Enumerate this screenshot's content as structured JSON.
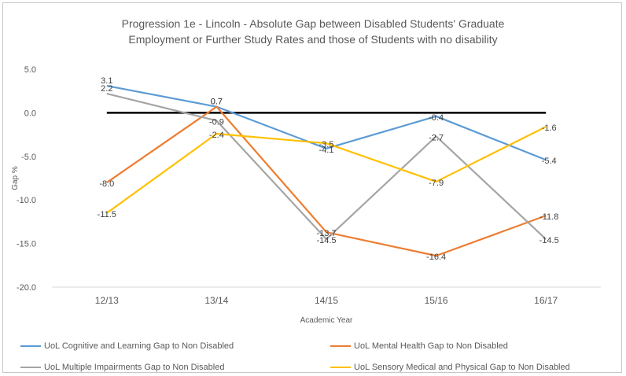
{
  "chart_data": {
    "type": "line",
    "title_lines": [
      "Progression 1e - Lincoln - Absolute Gap between Disabled Students' Graduate",
      "Employment or Further Study Rates and those of Students with no disability"
    ],
    "xlabel": "Academic Year",
    "ylabel": "Gap %",
    "categories": [
      "12/13",
      "13/14",
      "14/15",
      "15/16",
      "16/17"
    ],
    "ylim": [
      -20.0,
      5.0
    ],
    "yticks": [
      "5.0",
      "0.0",
      "-5.0",
      "-10.0",
      "-15.0",
      "-20.0"
    ],
    "ytick_values": [
      5,
      0,
      -5,
      -10,
      -15,
      -20
    ],
    "grid": false,
    "legend_position": "bottom",
    "series": [
      {
        "name": "UoL Cognitive and Learning Gap to Non Disabled",
        "color": "#5b9bd5",
        "values": [
          3.1,
          0.7,
          -4.1,
          -0.4,
          -5.4
        ],
        "labels": [
          "3.1",
          "0.7",
          "-4.1",
          "-0.4",
          "-5.4"
        ]
      },
      {
        "name": "UoL Mental Health Gap to Non Disabled",
        "color": "#ed7d31",
        "values": [
          -8.0,
          0.7,
          -13.7,
          -16.4,
          -11.8
        ],
        "labels": [
          "-8.0",
          "0.7",
          "-13.7",
          "-16.4",
          "-11.8"
        ]
      },
      {
        "name": "UoL Multiple Impairments Gap to Non Disabled",
        "color": "#a5a5a5",
        "values": [
          2.2,
          -0.9,
          -14.5,
          -2.7,
          -14.5
        ],
        "labels": [
          "2.2",
          "-0.9",
          "-14.5",
          "-2.7",
          "-14.5"
        ]
      },
      {
        "name": "UoL Sensory Medical and Physical Gap to Non Disabled",
        "color": "#ffc000",
        "values": [
          -11.5,
          -2.4,
          -3.5,
          -7.9,
          -1.6
        ],
        "labels": [
          "-11.5",
          "-2.4",
          "-3.5",
          "-7.9",
          "-1.6"
        ]
      }
    ]
  }
}
